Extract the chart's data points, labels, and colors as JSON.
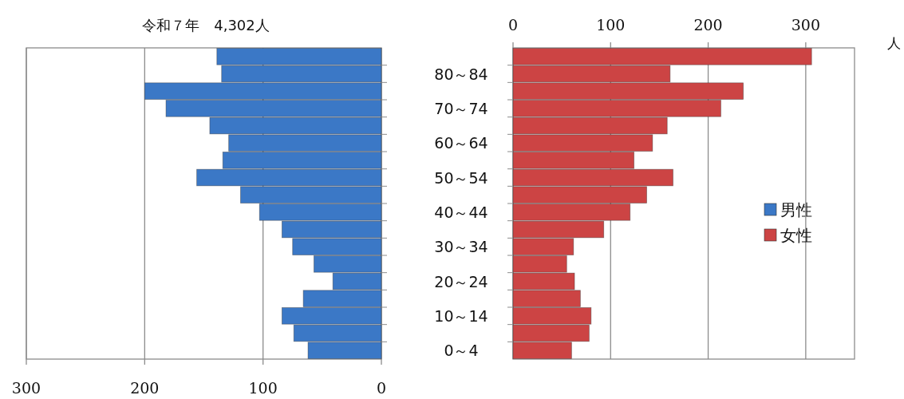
{
  "chart_data": [
    {
      "type": "bar",
      "orientation": "horizontal",
      "title": "令和７年　4,302人",
      "categories": [
        null,
        "80～84",
        null,
        "70～74",
        null,
        "60～64",
        null,
        "50～54",
        null,
        "40～44",
        null,
        "30～34",
        null,
        "20～24",
        null,
        "10～14",
        null,
        "0～4"
      ],
      "series": [
        {
          "name": "男性",
          "color": "#3b78c6",
          "values": [
            139,
            135,
            200,
            182,
            145,
            129,
            134,
            156,
            119,
            103,
            84,
            75,
            57,
            41,
            66,
            84,
            74,
            62
          ]
        }
      ],
      "xlim": [
        300,
        0
      ],
      "xticks": [
        300,
        200,
        100,
        0
      ],
      "grid": "x"
    },
    {
      "type": "bar",
      "orientation": "horizontal",
      "xlabel": "人",
      "categories": [
        null,
        null,
        null,
        null,
        null,
        null,
        null,
        null,
        null,
        null,
        null,
        null,
        null,
        null,
        null,
        null,
        null,
        null
      ],
      "series": [
        {
          "name": "女性",
          "color": "#cc4444",
          "values": [
            306,
            161,
            236,
            213,
            158,
            143,
            124,
            164,
            137,
            120,
            93,
            62,
            55,
            63,
            69,
            80,
            78,
            60
          ]
        }
      ],
      "xlim": [
        0,
        350
      ],
      "xticks": [
        0,
        100,
        200,
        300
      ],
      "grid": "x",
      "legend": "right"
    }
  ]
}
